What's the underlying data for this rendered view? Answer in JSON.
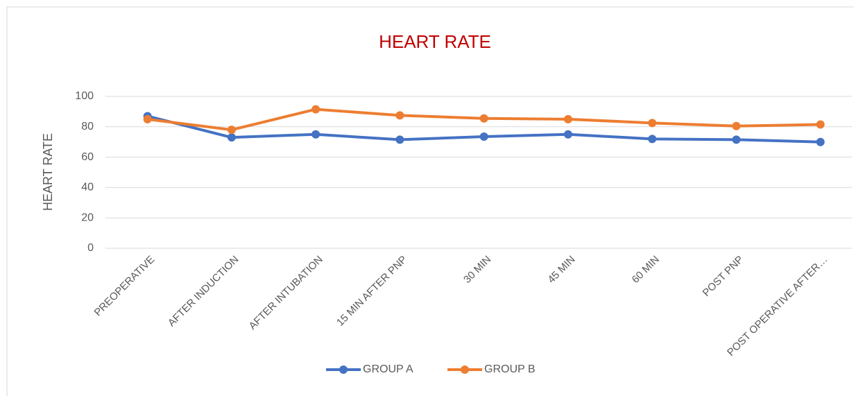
{
  "chart_data": {
    "type": "line",
    "title": "HEART RATE",
    "y_label": "HEART RATE",
    "categories": [
      "PREOPERATIVE",
      "AFTER INDUCTION",
      "AFTER INTUBATION",
      "15 MIN AFTER PNP",
      "30 MIN",
      "45 MIN",
      "60 MIN",
      "POST PNP",
      "POST OPERATIVE AFTER…"
    ],
    "series": [
      {
        "name": "GROUP A",
        "color": "#4472c4",
        "values": [
          87,
          73,
          75,
          71.5,
          73.5,
          75,
          72,
          71.5,
          70
        ]
      },
      {
        "name": "GROUP B",
        "color": "#ed7d31",
        "values": [
          85,
          78,
          91.5,
          87.5,
          85.5,
          85,
          82.5,
          80.5,
          81.5
        ]
      }
    ],
    "ylim": [
      0,
      100
    ],
    "yticks": [
      0,
      20,
      40,
      60,
      80,
      100
    ],
    "grid": true,
    "legend": "bottom",
    "title_color": "#c00000"
  }
}
